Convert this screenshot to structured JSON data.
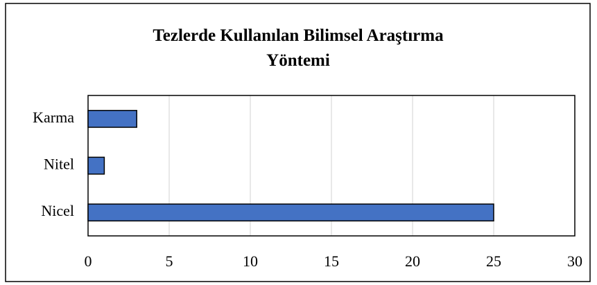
{
  "chart_data": {
    "type": "bar",
    "orientation": "horizontal",
    "title": "Tezlerde Kullanılan Bilimsel Araştırma Yöntemi",
    "categories": [
      "Karma",
      "Nitel",
      "Nicel"
    ],
    "values": [
      3,
      1,
      25
    ],
    "color": "#4472c4",
    "xlim": [
      0,
      30
    ],
    "xticks": [
      0,
      5,
      10,
      15,
      20,
      25,
      30
    ],
    "grid": true
  }
}
